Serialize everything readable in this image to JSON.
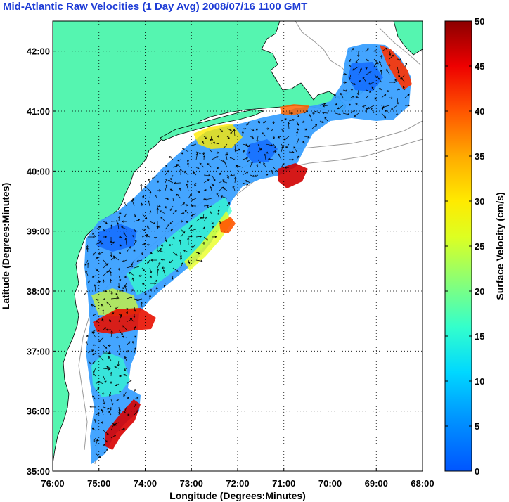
{
  "title": "Mid-Atlantic Raw Velocities (1 Day Avg) 2008/07/16 1100 GMT",
  "xlabel": "Longitude (Degrees:Minutes)",
  "ylabel": "Latitude (Degrees:Minutes)",
  "colorbar_label": "Surface Velocity (cm/s)",
  "x_ticks": [
    "76:00",
    "75:00",
    "74:00",
    "73:00",
    "72:00",
    "71:00",
    "70:00",
    "69:00",
    "68:00"
  ],
  "y_ticks": [
    "42:00",
    "41:00",
    "40:00",
    "39:00",
    "38:00",
    "37:00",
    "36:00",
    "35:00"
  ],
  "cb_ticks": [
    "50",
    "45",
    "40",
    "35",
    "30",
    "25",
    "20",
    "15",
    "10",
    "5",
    "0"
  ],
  "colors": {
    "land": "#55f5b0",
    "ocean": "#ffffff",
    "title": "#1e3cd6",
    "bathymetry": "#9a9a9a"
  },
  "chart_data": {
    "type": "heatmap",
    "title": "Mid-Atlantic Raw Velocities (1 Day Avg) 2008/07/16 1100 GMT",
    "xlabel": "Longitude (Degrees:Minutes)",
    "ylabel": "Latitude (Degrees:Minutes)",
    "xlim": [
      -76,
      -68
    ],
    "ylim": [
      35,
      42.5
    ],
    "colorbar": {
      "label": "Surface Velocity (cm/s)",
      "range": [
        0,
        50
      ],
      "colormap": "jet"
    },
    "grid": true,
    "regions": [
      {
        "name": "",
        "lon": -74.8,
        "lat": 38.4,
        "speed_cm_s": 6
      },
      {
        "name": "",
        "lon": -74.3,
        "lat": 39.0,
        "speed_cm_s": 5
      },
      {
        "name": "",
        "lon": -73.5,
        "lat": 39.8,
        "speed_cm_s": 8
      },
      {
        "name": "",
        "lon": -71.8,
        "lat": 40.3,
        "speed_cm_s": 5
      },
      {
        "name": "",
        "lon": -70.2,
        "lat": 40.8,
        "speed_cm_s": 10
      },
      {
        "name": "",
        "lon": -69.0,
        "lat": 41.5,
        "speed_cm_s": 5
      },
      {
        "name": "",
        "lon": -74.5,
        "lat": 37.4,
        "speed_cm_s": 42
      },
      {
        "name": "",
        "lon": -71.0,
        "lat": 39.9,
        "speed_cm_s": 48
      },
      {
        "name": "",
        "lon": -74.6,
        "lat": 35.7,
        "speed_cm_s": 45
      },
      {
        "name": "",
        "lon": -72.1,
        "lat": 39.1,
        "speed_cm_s": 40
      },
      {
        "name": "",
        "lon": -68.8,
        "lat": 42.0,
        "speed_cm_s": 40
      },
      {
        "name": "",
        "lon": -74.8,
        "lat": 36.5,
        "speed_cm_s": 18
      },
      {
        "name": "",
        "lon": -73.0,
        "lat": 38.4,
        "speed_cm_s": 22
      }
    ]
  }
}
